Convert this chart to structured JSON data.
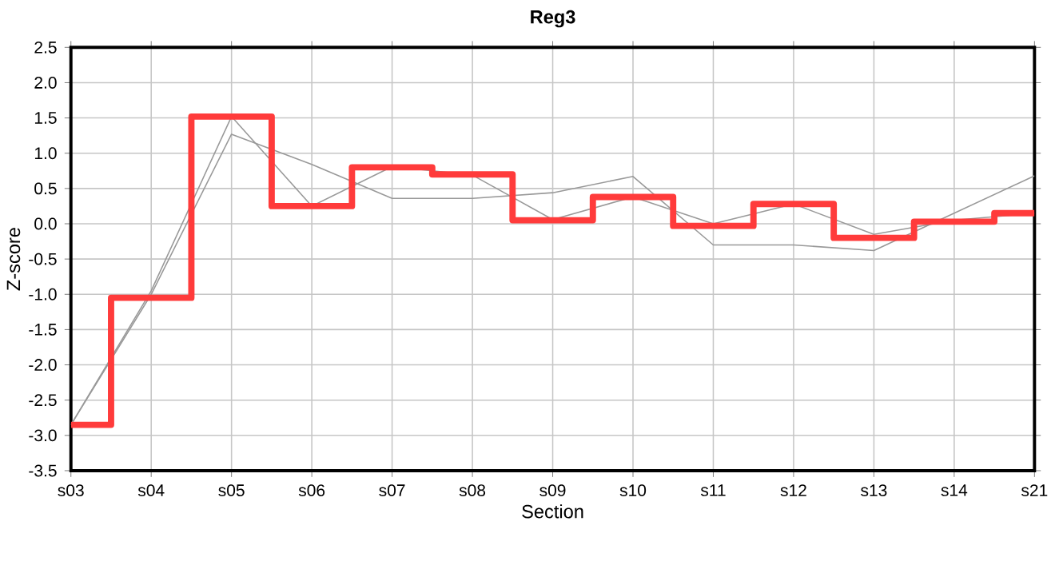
{
  "chart_data": {
    "type": "line",
    "title": "Reg3",
    "xlabel": "Section",
    "ylabel": "Z-score",
    "categories": [
      "s03",
      "s04",
      "s05",
      "s06",
      "s07",
      "s08",
      "s09",
      "s10",
      "s11",
      "s12",
      "s13",
      "s14",
      "s21"
    ],
    "series": [
      {
        "color": "#999999",
        "values": [
          -2.85,
          -0.95,
          1.52,
          0.25,
          0.81,
          0.69,
          0.06,
          0.38,
          0.0,
          0.28,
          -0.15,
          0.05,
          0.15
        ]
      },
      {
        "color": "#999999",
        "values": [
          -2.85,
          -1.0,
          1.27,
          0.84,
          0.36,
          0.36,
          0.44,
          0.67,
          -0.3,
          -0.3,
          -0.38,
          0.15,
          0.68
        ]
      },
      {
        "type": "step",
        "color": "#ff3b3b",
        "values": [
          -2.85,
          -1.05,
          1.52,
          0.25,
          0.8,
          0.7,
          0.05,
          0.38,
          -0.03,
          0.28,
          -0.2,
          0.03,
          0.15
        ]
      }
    ],
    "ylim": [
      -3.5,
      2.5
    ],
    "yticks": [
      {
        "value": -3.5,
        "label": "-3.5"
      },
      {
        "value": -3,
        "label": "-3.0"
      },
      {
        "value": -2.5,
        "label": "-2.5"
      },
      {
        "value": -2,
        "label": "-2.0"
      },
      {
        "value": -1.5,
        "label": "-1.5"
      },
      {
        "value": -1,
        "label": "-1.0"
      },
      {
        "value": -0.5,
        "label": "-0.5"
      },
      {
        "value": 0,
        "label": "0.0"
      },
      {
        "value": 0.5,
        "label": "0.5"
      },
      {
        "value": 1,
        "label": "1.0"
      },
      {
        "value": 1.5,
        "label": "1.5"
      },
      {
        "value": 2,
        "label": "2.0"
      },
      {
        "value": 2.5,
        "label": "2.5"
      }
    ],
    "grid": true,
    "marker": "none",
    "line_style": "solid"
  }
}
